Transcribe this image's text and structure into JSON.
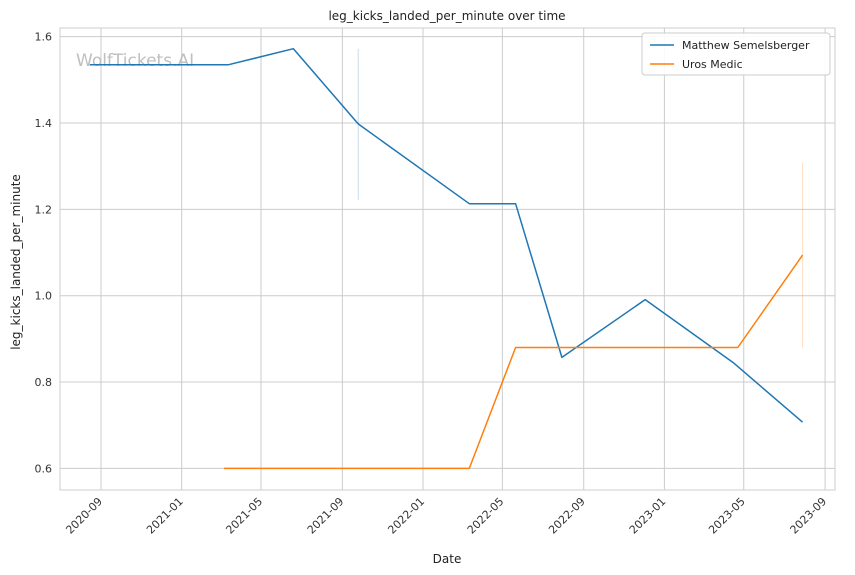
{
  "chart_data": {
    "type": "line",
    "title": "leg_kicks_landed_per_minute over time",
    "xlabel": "Date",
    "ylabel": "leg_kicks_landed_per_minute",
    "watermark": "WolfTickets.AI",
    "xlim": [
      "2020-07-01",
      "2023-09-16"
    ],
    "ylim": [
      0.55,
      1.62
    ],
    "x_ticks": [
      "2020-09",
      "2021-01",
      "2021-05",
      "2021-09",
      "2022-01",
      "2022-05",
      "2022-09",
      "2023-01",
      "2023-05",
      "2023-09"
    ],
    "y_ticks": [
      0.6,
      0.8,
      1.0,
      1.2,
      1.4,
      1.6
    ],
    "y_tick_labels": [
      "0.6",
      "0.8",
      "1.0",
      "1.2",
      "1.4",
      "1.6"
    ],
    "grid": true,
    "legend_position": "top-right",
    "series": [
      {
        "name": "Matthew Semelsberger",
        "color": "#1f77b4",
        "x": [
          "2020-08-15",
          "2021-03-13",
          "2021-06-19",
          "2021-09-25",
          "2022-03-12",
          "2022-05-21",
          "2022-07-30",
          "2022-12-03",
          "2023-04-15",
          "2023-07-29"
        ],
        "y": [
          1.535,
          1.535,
          1.572,
          1.398,
          1.213,
          1.213,
          0.857,
          0.991,
          0.845,
          0.707
        ],
        "error_bars": [
          {
            "x": "2021-09-25",
            "low": 1.222,
            "high": 1.572
          }
        ]
      },
      {
        "name": "Uros Medic",
        "color": "#ff7f0e",
        "x": [
          "2021-03-06",
          "2022-03-12",
          "2022-05-21",
          "2023-04-22",
          "2023-07-29"
        ],
        "y": [
          0.6,
          0.6,
          0.88,
          0.88,
          1.094
        ],
        "error_bars": [
          {
            "x": "2023-07-29",
            "low": 0.88,
            "high": 1.308
          }
        ]
      }
    ]
  }
}
